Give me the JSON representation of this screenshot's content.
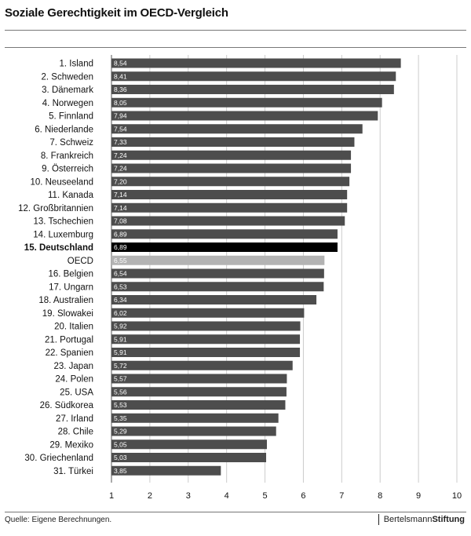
{
  "header": {
    "title": "Soziale Gerechtigkeit im OECD-Vergleich"
  },
  "footer": {
    "source": "Quelle: Eigene Berechnungen.",
    "logo_part1": "Bertelsmann",
    "logo_part2": "Stiftung"
  },
  "colors": {
    "bar": "#4d4d4d",
    "highlight": "#000000",
    "oecd": "#b3b3b3",
    "grid": "#cccccc"
  },
  "chart_data": {
    "type": "bar",
    "orientation": "horizontal",
    "title": "Soziale Gerechtigkeit im OECD-Vergleich",
    "xlim": [
      1,
      10
    ],
    "xticks": [
      1,
      2,
      3,
      4,
      5,
      6,
      7,
      8,
      9,
      10
    ],
    "grid": true,
    "categories": [
      "1. Island",
      "2. Schweden",
      "3. Dänemark",
      "4. Norwegen",
      "5. Finnland",
      "6. Niederlande",
      "7. Schweiz",
      "8. Frankreich",
      "9. Österreich",
      "10. Neuseeland",
      "11. Kanada",
      "12. Großbritannien",
      "13. Tschechien",
      "14. Luxemburg",
      "15. Deutschland",
      "OECD",
      "16. Belgien",
      "17. Ungarn",
      "18. Australien",
      "19. Slowakei",
      "20. Italien",
      "21. Portugal",
      "22. Spanien",
      "23. Japan",
      "24. Polen",
      "25. USA",
      "26. Südkorea",
      "27. Irland",
      "28. Chile",
      "29. Mexiko",
      "30. Griechenland",
      "31. Türkei"
    ],
    "values": [
      8.54,
      8.41,
      8.36,
      8.05,
      7.94,
      7.54,
      7.33,
      7.24,
      7.24,
      7.2,
      7.14,
      7.14,
      7.08,
      6.89,
      6.89,
      6.55,
      6.54,
      6.53,
      6.34,
      6.02,
      5.92,
      5.91,
      5.91,
      5.72,
      5.57,
      5.56,
      5.53,
      5.35,
      5.29,
      5.05,
      5.03,
      3.85
    ],
    "value_labels": [
      "8,54",
      "8,41",
      "8,36",
      "8,05",
      "7,94",
      "7,54",
      "7,33",
      "7,24",
      "7,24",
      "7,20",
      "7,14",
      "7,14",
      "7,08",
      "6,89",
      "6,89",
      "6,55",
      "6,54",
      "6,53",
      "6,34",
      "6,02",
      "5,92",
      "5,91",
      "5,91",
      "5,72",
      "5,57",
      "5,56",
      "5,53",
      "5,35",
      "5,29",
      "5,05",
      "5,03",
      "3,85"
    ],
    "highlight": "15. Deutschland",
    "reference": "OECD"
  }
}
